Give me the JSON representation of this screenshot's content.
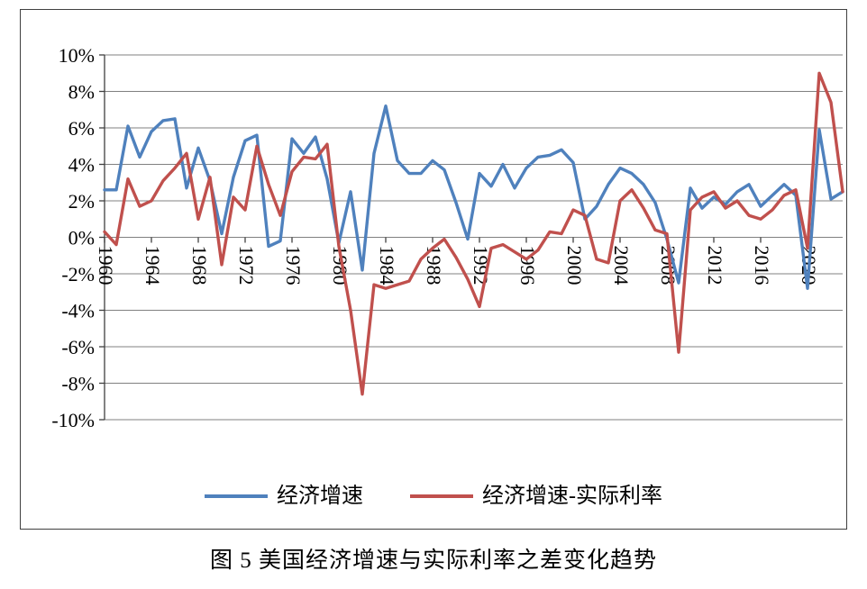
{
  "figure": {
    "caption": "图 5 美国经济增速与实际利率之差变化趋势"
  },
  "chart_data": {
    "type": "line",
    "title": "",
    "xlabel": "",
    "ylabel": "",
    "ylim": [
      -10,
      10
    ],
    "grid": true,
    "legend_position": "bottom",
    "colors": {
      "grid": "#808080",
      "axis": "#404040",
      "series_blue": "#4F81BD",
      "series_red": "#C0504D"
    },
    "x": [
      1960,
      1961,
      1962,
      1963,
      1964,
      1965,
      1966,
      1967,
      1968,
      1969,
      1970,
      1971,
      1972,
      1973,
      1974,
      1975,
      1976,
      1977,
      1978,
      1979,
      1980,
      1981,
      1982,
      1983,
      1984,
      1985,
      1986,
      1987,
      1988,
      1989,
      1990,
      1991,
      1992,
      1993,
      1994,
      1995,
      1996,
      1997,
      1998,
      1999,
      2000,
      2001,
      2002,
      2003,
      2004,
      2005,
      2006,
      2007,
      2008,
      2009,
      2010,
      2011,
      2012,
      2013,
      2014,
      2015,
      2016,
      2017,
      2018,
      2019,
      2020,
      2021,
      2022,
      2023
    ],
    "yticks": {
      "values": [
        10,
        8,
        6,
        4,
        2,
        0,
        -2,
        -4,
        -6,
        -8,
        -10
      ],
      "labels": [
        "10%",
        "8%",
        "6%",
        "4%",
        "2%",
        "0%",
        "-2%",
        "-4%",
        "-6%",
        "-8%",
        "-10%"
      ]
    },
    "xticks": {
      "values": [
        1960,
        1964,
        1968,
        1972,
        1976,
        1980,
        1984,
        1988,
        1992,
        1996,
        2000,
        2004,
        2008,
        2012,
        2016,
        2020
      ],
      "labels": [
        "1960",
        "1964",
        "1968",
        "1972",
        "1976",
        "1980",
        "1984",
        "1988",
        "1992",
        "1996",
        "2000",
        "2004",
        "2008",
        "2012",
        "2016",
        "2020"
      ]
    },
    "series": [
      {
        "name": "经济增速",
        "color": "#4F81BD",
        "values": [
          2.6,
          2.6,
          6.1,
          4.4,
          5.8,
          6.4,
          6.5,
          2.7,
          4.9,
          3.1,
          0.2,
          3.3,
          5.3,
          5.6,
          -0.5,
          -0.2,
          5.4,
          4.6,
          5.5,
          3.2,
          -0.3,
          2.5,
          -1.8,
          4.6,
          7.2,
          4.2,
          3.5,
          3.5,
          4.2,
          3.7,
          1.9,
          -0.1,
          3.5,
          2.8,
          4.0,
          2.7,
          3.8,
          4.4,
          4.5,
          4.8,
          4.1,
          1.0,
          1.7,
          2.9,
          3.8,
          3.5,
          2.9,
          1.9,
          -0.1,
          -2.5,
          2.7,
          1.6,
          2.2,
          1.8,
          2.5,
          2.9,
          1.7,
          2.3,
          2.9,
          2.3,
          -2.8,
          5.9,
          2.1,
          2.5
        ]
      },
      {
        "name": "经济增速-实际利率",
        "color": "#C0504D",
        "values": [
          0.3,
          -0.4,
          3.2,
          1.7,
          2.0,
          3.1,
          3.8,
          4.6,
          1.0,
          3.3,
          -1.5,
          2.2,
          1.5,
          5.0,
          2.9,
          1.2,
          3.6,
          4.4,
          4.3,
          5.1,
          -0.5,
          -4.0,
          -8.6,
          -2.6,
          -2.8,
          -2.6,
          -2.4,
          -1.2,
          -0.6,
          -0.1,
          -1.1,
          -2.3,
          -3.8,
          -0.6,
          -0.4,
          -0.8,
          -1.2,
          -0.7,
          0.3,
          0.2,
          1.5,
          1.2,
          -1.2,
          -1.4,
          2.0,
          2.6,
          1.6,
          0.4,
          0.2,
          -6.3,
          1.5,
          2.2,
          2.5,
          1.6,
          2.0,
          1.2,
          1.0,
          1.5,
          2.3,
          2.6,
          -0.6,
          9.0,
          7.4,
          2.5
        ]
      }
    ]
  }
}
